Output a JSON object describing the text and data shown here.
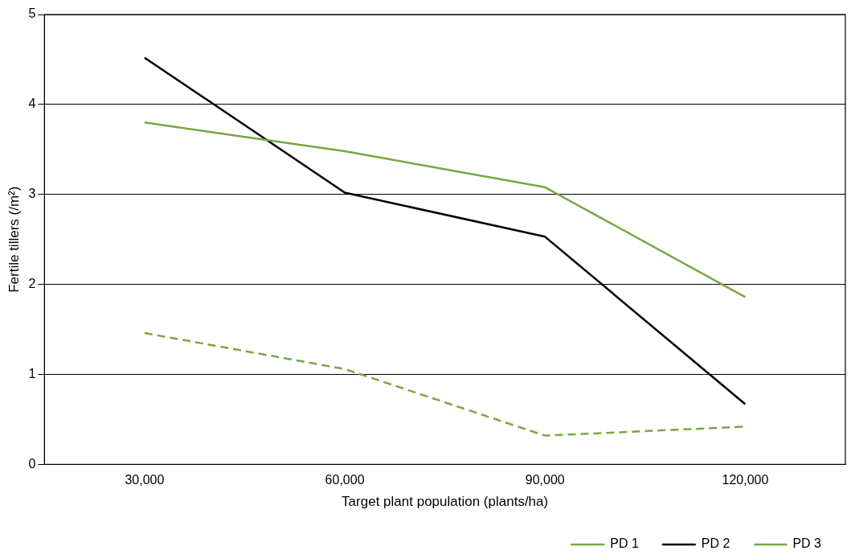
{
  "chart_data": {
    "type": "line",
    "xlabel": "Target plant population (plants/ha)",
    "ylabel": "Fertile tillers (/m²)",
    "categories": [
      "30,000",
      "60,000",
      "90,000",
      "120,000"
    ],
    "series": [
      {
        "name": "PD 1",
        "color": "#77a843",
        "line_style": "solid",
        "values": [
          3.8,
          3.48,
          3.08,
          1.86
        ]
      },
      {
        "name": "PD 2",
        "color": "#000000",
        "line_style": "solid",
        "values": [
          4.52,
          3.02,
          2.53,
          0.67
        ]
      },
      {
        "name": "PD 3",
        "color": "#77a843",
        "line_style": "dashed",
        "values": [
          1.46,
          1.06,
          0.32,
          0.42
        ]
      }
    ],
    "ylim": [
      0,
      5
    ],
    "yticks": [
      0,
      1,
      2,
      3,
      4,
      5
    ],
    "grid": "y",
    "legend": "bottom right",
    "marker": "none"
  }
}
